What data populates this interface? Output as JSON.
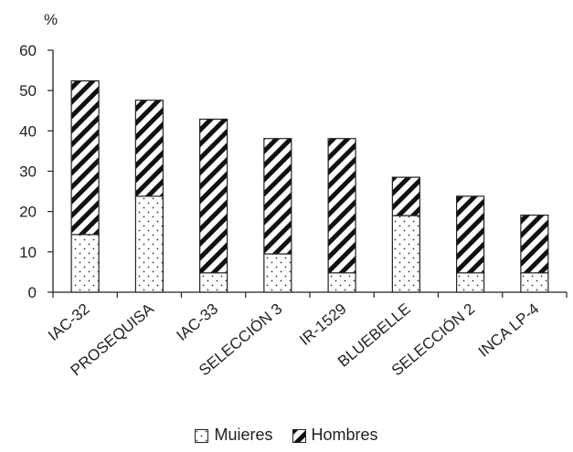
{
  "chart_data": {
    "type": "bar",
    "stacked": true,
    "ylabel": "%",
    "ylim": [
      0,
      60
    ],
    "yticks": [
      0,
      10,
      20,
      30,
      40,
      50,
      60
    ],
    "grid": false,
    "legend_position": "bottom",
    "categories": [
      "IAC-32",
      "PROSEQUISA",
      "IAC-33",
      "SELECCIÓN 3",
      "IR-1529",
      "BLUEBELLE",
      "SELECCIÓN 2",
      "INCA LP-4"
    ],
    "series": [
      {
        "name": "Muieres",
        "pattern": "dots",
        "values": [
          14.3,
          23.8,
          4.8,
          9.5,
          4.8,
          19.0,
          4.8,
          4.8
        ]
      },
      {
        "name": "Hombres",
        "pattern": "diagonal-hatch",
        "values": [
          38.1,
          23.8,
          38.1,
          28.6,
          33.3,
          9.5,
          19.0,
          14.3
        ]
      }
    ],
    "colors": {
      "ink": "#222222",
      "fill": "#ffffff"
    }
  }
}
